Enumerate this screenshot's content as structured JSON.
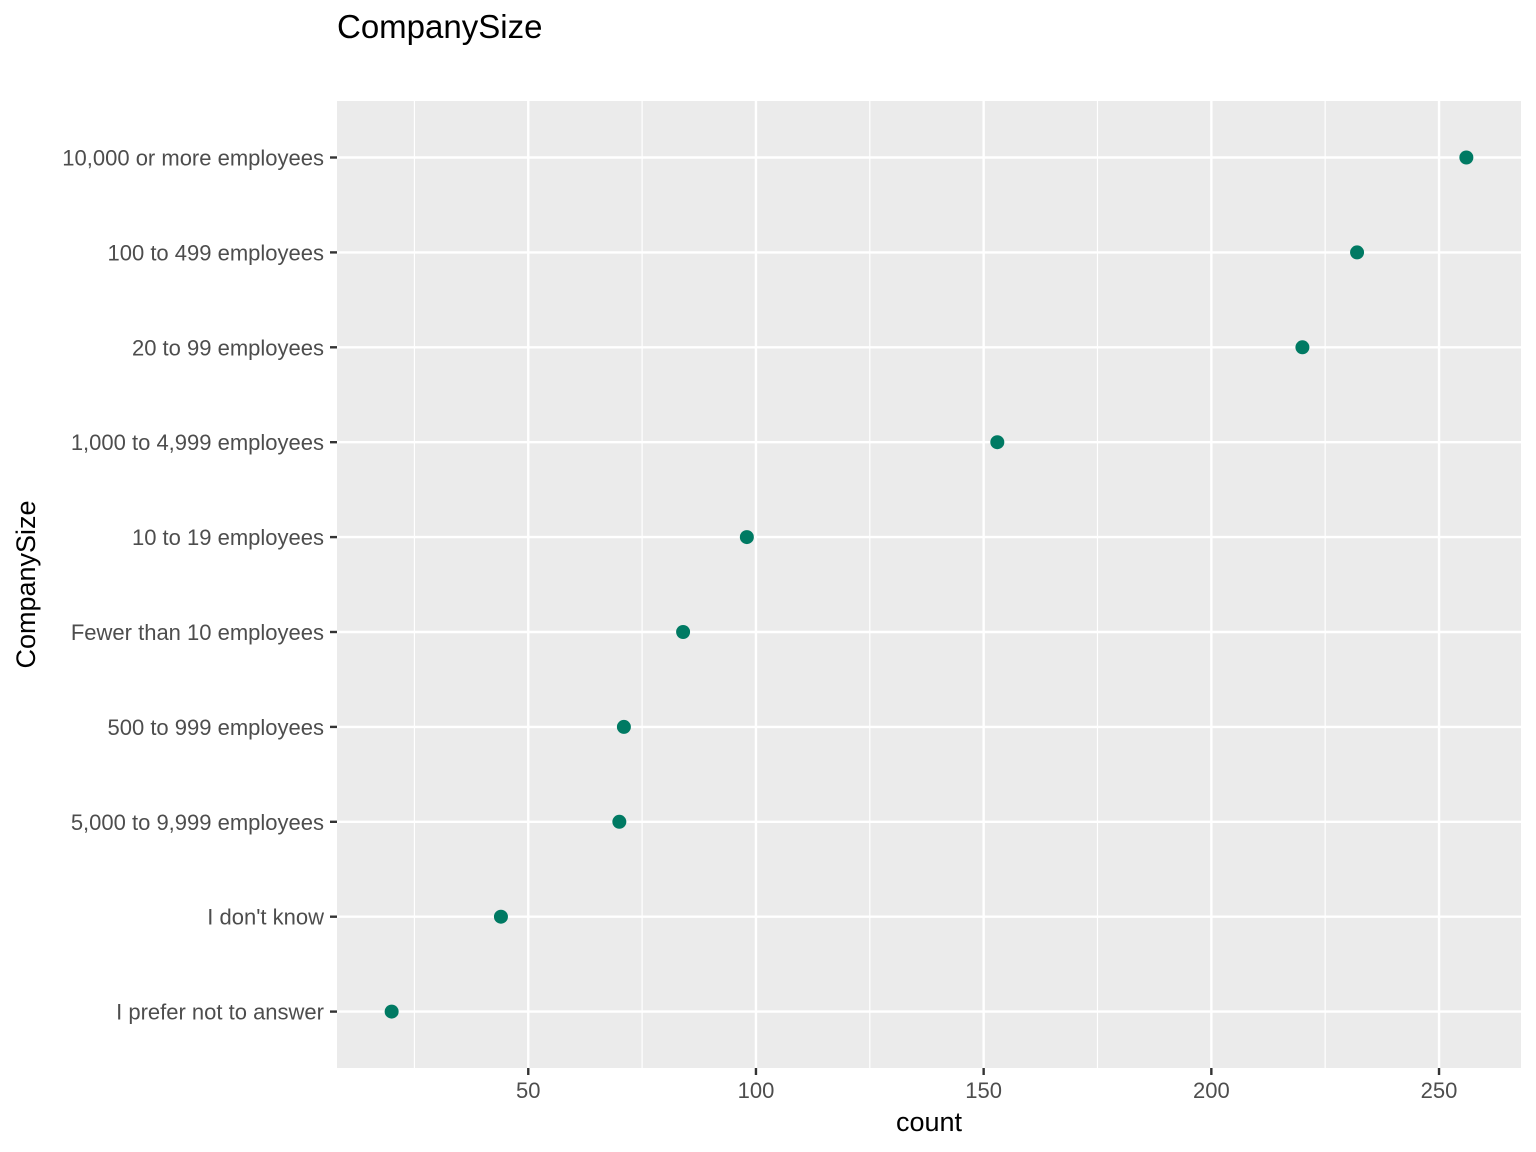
{
  "chart_data": {
    "type": "scatter",
    "title": "CompanySize",
    "xlabel": "count",
    "ylabel": "CompanySize",
    "xlim": [
      8,
      268
    ],
    "xticks": [
      50,
      100,
      150,
      200,
      250
    ],
    "grid": true,
    "legend": "none",
    "categories": [
      "10,000 or more employees",
      "100 to 499 employees",
      "20 to 99 employees",
      "1,000 to 4,999 employees",
      "10 to 19 employees",
      "Fewer than 10 employees",
      "500 to 999 employees",
      "5,000 to 9,999 employees",
      "I don't know",
      "I prefer not to answer"
    ],
    "values": [
      256,
      232,
      220,
      153,
      98,
      84,
      71,
      70,
      44,
      20
    ],
    "colors": {
      "panel": "#ebebeb",
      "grid": "#ffffff",
      "point": "#007a63",
      "tick": "#333333"
    }
  }
}
